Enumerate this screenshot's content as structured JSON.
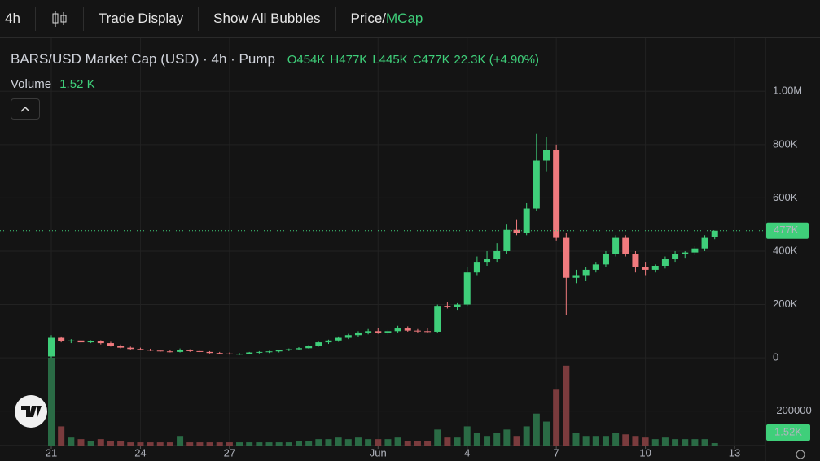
{
  "toolbar": {
    "interval": "4h",
    "buttons": [
      "Trade Display",
      "Show All Bubbles"
    ],
    "price_toggle": "Price/",
    "mcap_toggle": "MCap"
  },
  "chart_data": {
    "type": "candlestick",
    "title": "BARS/USD Market Cap (USD) · 4h · Pump",
    "ohlc_legend": [
      {
        "key": "O",
        "value": "454K"
      },
      {
        "key": "H",
        "value": "477K"
      },
      {
        "key": "L",
        "value": "445K"
      },
      {
        "key": "C",
        "value": "477K"
      }
    ],
    "change": "22.3K (+4.90%)",
    "volume_title": "Volume",
    "volume_legend": "1.52 K",
    "categories": [
      "21",
      null,
      null,
      null,
      null,
      null,
      null,
      null,
      null,
      "24",
      null,
      null,
      null,
      null,
      null,
      null,
      null,
      null,
      "27",
      null,
      null,
      null,
      null,
      null,
      null,
      null,
      null,
      null,
      null,
      null,
      null,
      null,
      null,
      "Jun",
      null,
      null,
      null,
      null,
      null,
      null,
      null,
      null,
      "4",
      null,
      null,
      null,
      null,
      null,
      null,
      null,
      null,
      "7",
      null,
      null,
      null,
      null,
      null,
      null,
      null,
      null,
      "10",
      null,
      null,
      null,
      null,
      null,
      null,
      null,
      null,
      "13"
    ],
    "open": [
      5000,
      75000,
      62000,
      65000,
      58000,
      63000,
      55000,
      45000,
      38000,
      33000,
      30000,
      27000,
      24000,
      22000,
      30000,
      25000,
      22000,
      18000,
      16000,
      14000,
      15000,
      20000,
      22000,
      24000,
      28000,
      32000,
      36000,
      45000,
      58000,
      65000,
      75000,
      85000,
      95000,
      100000,
      95000,
      100000,
      110000,
      102000,
      100000,
      98000,
      195000,
      190000,
      200000,
      320000,
      360000,
      370000,
      400000,
      480000,
      470000,
      560000,
      740000,
      780000,
      450000,
      300000,
      310000,
      330000,
      350000,
      390000,
      450000,
      390000,
      340000,
      330000,
      345000,
      370000,
      390000,
      395000,
      410000,
      454000,
      null,
      null
    ],
    "high": [
      85000,
      80000,
      70000,
      68000,
      66000,
      66000,
      60000,
      50000,
      42000,
      38000,
      34000,
      30000,
      28000,
      35000,
      32000,
      28000,
      25000,
      22000,
      20000,
      18000,
      22000,
      25000,
      26000,
      30000,
      35000,
      40000,
      48000,
      60000,
      68000,
      80000,
      90000,
      100000,
      108000,
      112000,
      105000,
      120000,
      118000,
      108000,
      110000,
      200000,
      210000,
      205000,
      340000,
      380000,
      400000,
      430000,
      500000,
      520000,
      580000,
      840000,
      830000,
      800000,
      470000,
      330000,
      340000,
      360000,
      400000,
      460000,
      460000,
      400000,
      360000,
      350000,
      380000,
      400000,
      400000,
      420000,
      460000,
      477000,
      null,
      null
    ],
    "low": [
      0,
      58000,
      55000,
      52000,
      55000,
      50000,
      42000,
      35000,
      30000,
      28000,
      25000,
      22000,
      20000,
      20000,
      22000,
      20000,
      16000,
      14000,
      12000,
      10000,
      13000,
      16000,
      18000,
      20000,
      25000,
      28000,
      34000,
      42000,
      52000,
      60000,
      70000,
      78000,
      88000,
      90000,
      85000,
      95000,
      98000,
      95000,
      92000,
      95000,
      185000,
      180000,
      195000,
      310000,
      345000,
      360000,
      390000,
      460000,
      460000,
      550000,
      700000,
      440000,
      160000,
      280000,
      290000,
      320000,
      340000,
      380000,
      380000,
      320000,
      310000,
      320000,
      335000,
      360000,
      375000,
      385000,
      400000,
      445000,
      null,
      null
    ],
    "close": [
      75000,
      62000,
      65000,
      58000,
      63000,
      55000,
      45000,
      38000,
      33000,
      30000,
      27000,
      24000,
      22000,
      30000,
      25000,
      22000,
      18000,
      16000,
      14000,
      15000,
      20000,
      22000,
      24000,
      28000,
      32000,
      36000,
      45000,
      58000,
      65000,
      75000,
      85000,
      95000,
      100000,
      95000,
      100000,
      110000,
      102000,
      100000,
      98000,
      195000,
      190000,
      200000,
      320000,
      360000,
      370000,
      400000,
      480000,
      470000,
      560000,
      740000,
      780000,
      450000,
      300000,
      310000,
      330000,
      350000,
      390000,
      450000,
      390000,
      340000,
      330000,
      345000,
      370000,
      390000,
      395000,
      410000,
      450000,
      477000,
      null,
      null
    ],
    "volume": [
      55,
      12,
      5,
      4,
      3,
      4,
      3,
      3,
      2,
      2,
      2,
      2,
      2,
      6,
      2,
      2,
      2,
      2,
      2,
      2,
      2,
      2,
      2,
      2,
      2,
      3,
      3,
      4,
      4,
      5,
      4,
      5,
      4,
      4,
      4,
      5,
      3,
      3,
      3,
      10,
      5,
      5,
      12,
      8,
      6,
      8,
      10,
      6,
      12,
      20,
      15,
      35,
      50,
      8,
      6,
      6,
      6,
      8,
      7,
      6,
      5,
      4,
      5,
      4,
      4,
      4,
      4,
      1.52,
      null,
      null
    ],
    "volume_label": "1.52K",
    "last_price": 477000,
    "last_price_label": "477K",
    "up_color": "#3fcf7a",
    "down_color": "#f07a7e",
    "volume_up_color": "#2a6b45",
    "volume_down_color": "#7a3b3d",
    "ylim": [
      -320000,
      1190000
    ],
    "yticks": [
      {
        "value": 1000000,
        "label": "1.00M"
      },
      {
        "value": 800000,
        "label": "800K"
      },
      {
        "value": 600000,
        "label": "600K"
      },
      {
        "value": 400000,
        "label": "400K"
      },
      {
        "value": 200000,
        "label": "200K"
      },
      0,
      -200000
    ],
    "grid": true
  }
}
